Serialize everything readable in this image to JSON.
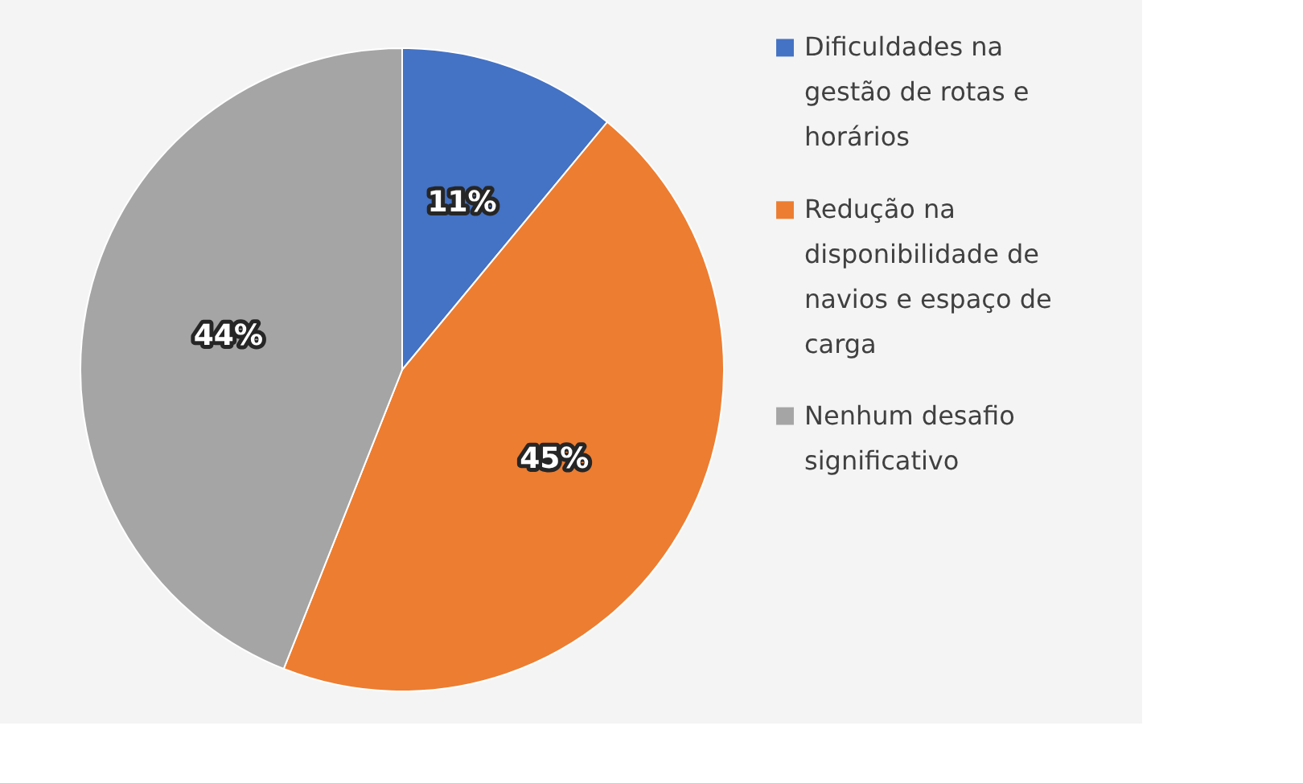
{
  "chart_data": {
    "type": "pie",
    "categories": [
      "Dificuldades na gestão de rotas e horários",
      "Redução na disponibilidade de navios e espaço de carga",
      "Nenhum desafio significativo"
    ],
    "values": [
      11,
      45,
      44
    ],
    "colors": [
      "#4472c4",
      "#ed7d31",
      "#a5a5a5"
    ],
    "value_labels": [
      "11%",
      "45%",
      "44%"
    ],
    "legend": "right"
  }
}
